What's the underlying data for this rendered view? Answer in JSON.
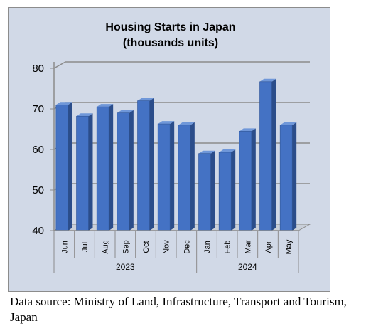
{
  "chart_data": {
    "type": "bar",
    "title": "Housing Starts in Japan",
    "subtitle": "(thousands units)",
    "categories": [
      "Jun",
      "Jul",
      "Aug",
      "Sep",
      "Oct",
      "Nov",
      "Dec",
      "Jan",
      "Feb",
      "Mar",
      "Apr",
      "May"
    ],
    "groups": [
      {
        "label": "2023",
        "count": 7
      },
      {
        "label": "2024",
        "count": 5
      }
    ],
    "values": [
      71,
      68.2,
      70.5,
      69,
      72,
      66.3,
      66,
      59,
      59.3,
      64.5,
      76.7,
      66
    ],
    "ylim": [
      40,
      80
    ],
    "yticks": [
      40,
      50,
      60,
      70,
      80
    ],
    "grid": true,
    "legend": "none",
    "bar_color": "#4472c4"
  },
  "footnote": "Data source: Ministry of Land, Infrastructure, Transport and Tourism, Japan"
}
